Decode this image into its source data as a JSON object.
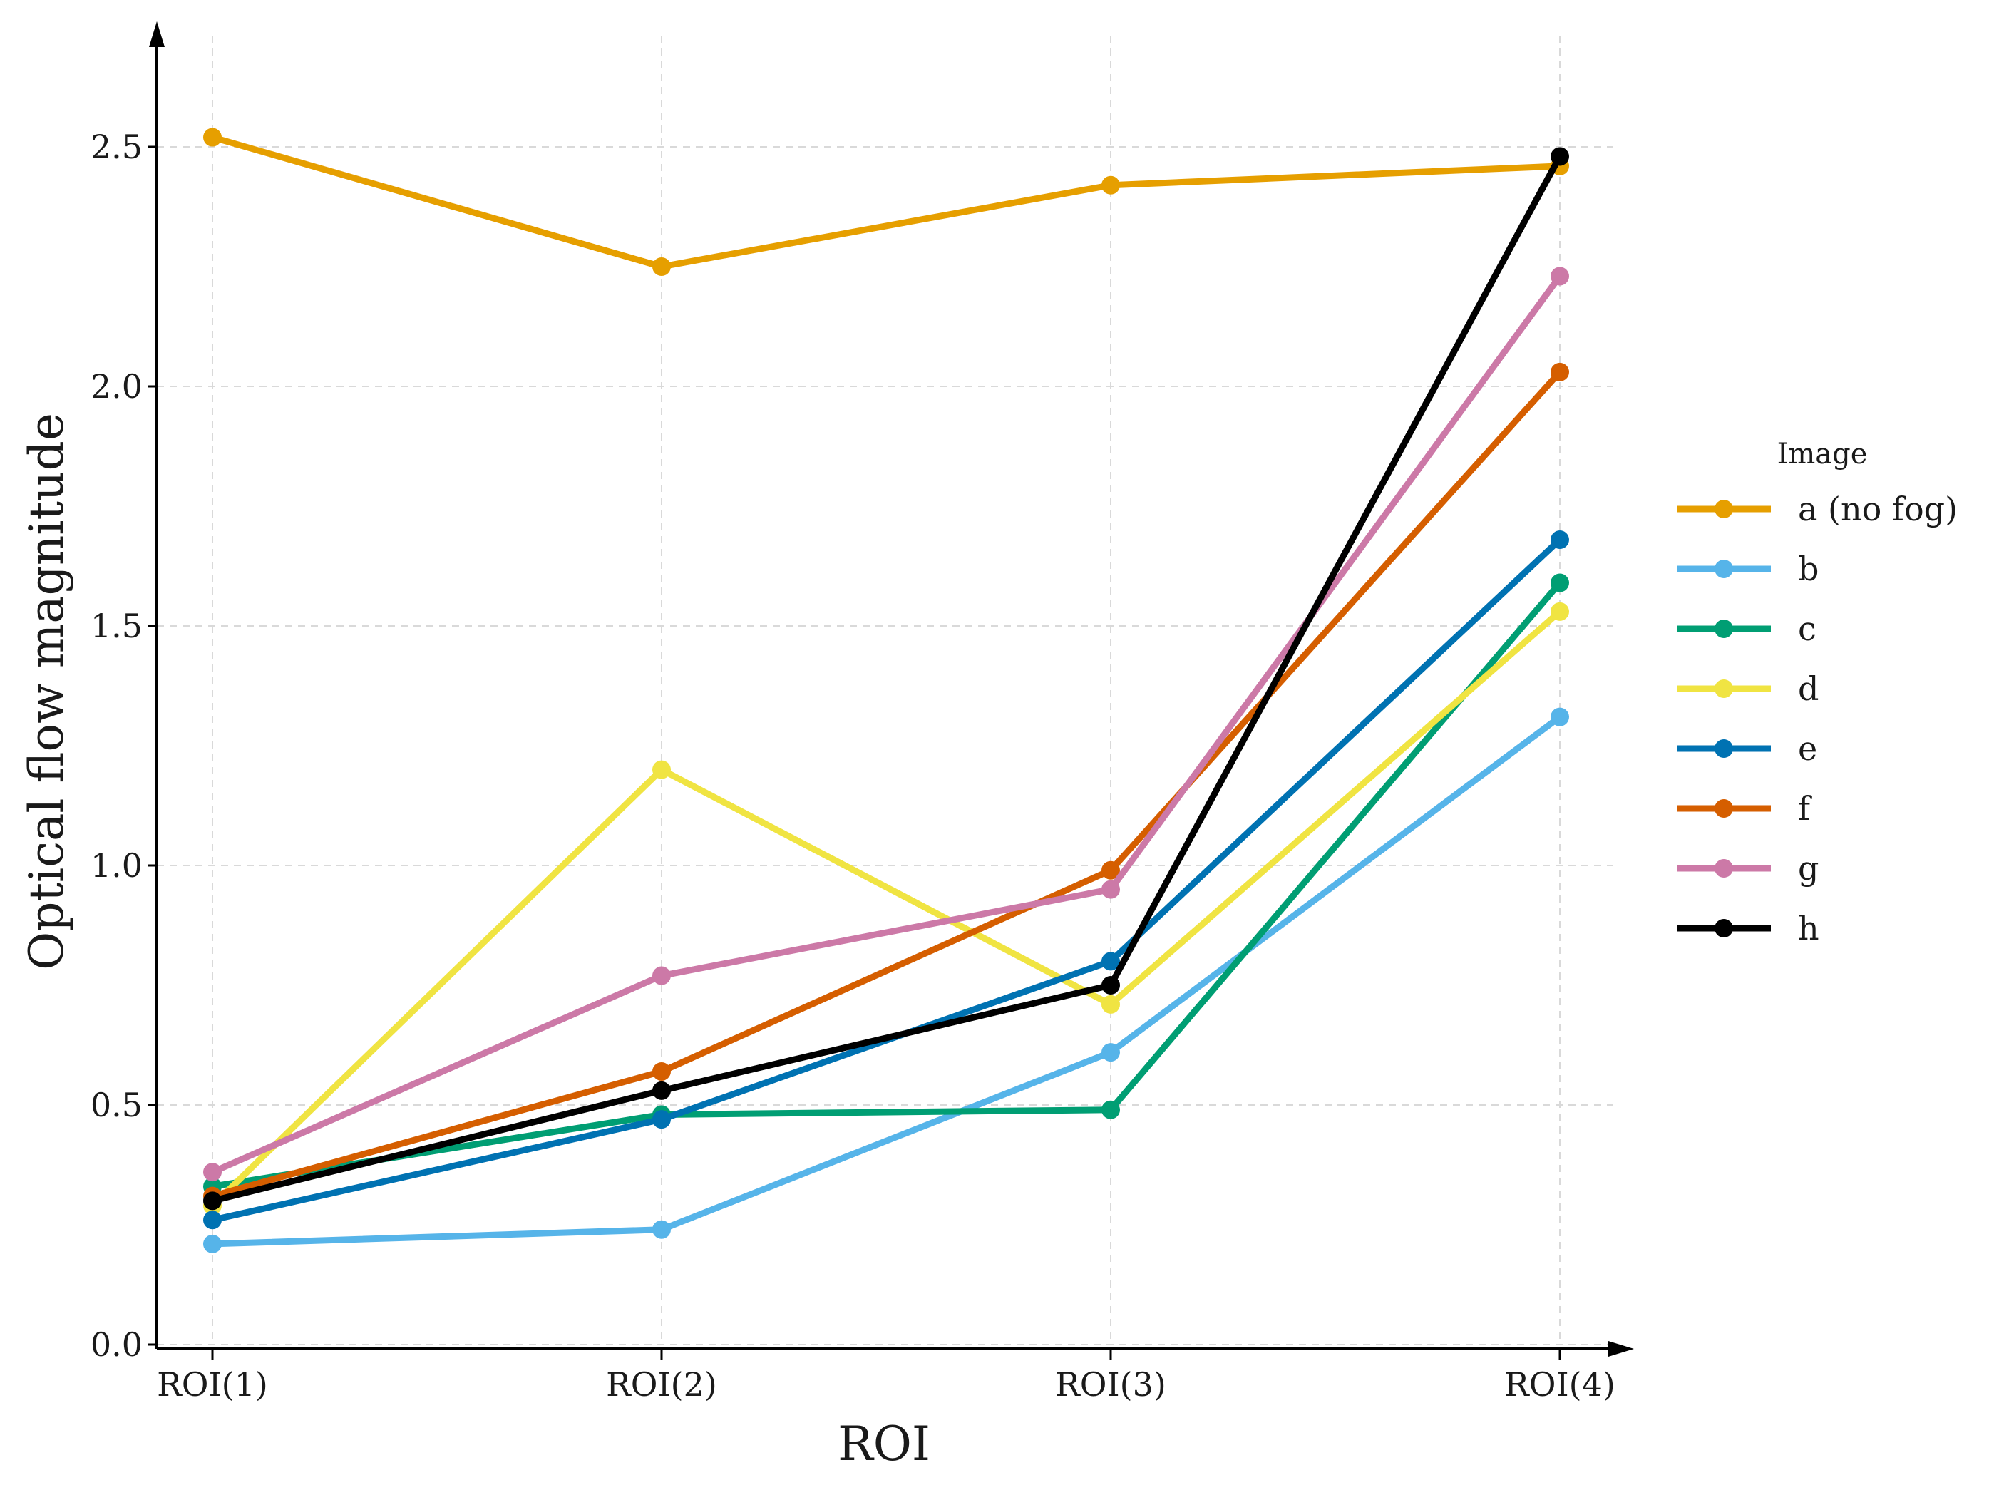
{
  "chart_data": {
    "type": "line",
    "title": "",
    "xlabel": "ROI",
    "ylabel": "Optical flow magnitude",
    "categories": [
      "ROI(1)",
      "ROI(2)",
      "ROI(3)",
      "ROI(4)"
    ],
    "yticks": [
      0.0,
      0.5,
      1.0,
      1.5,
      2.0,
      2.5
    ],
    "ytick_labels": [
      "0.0",
      "0.5",
      "1.0",
      "1.5",
      "2.0",
      "2.5"
    ],
    "ylim": [
      0,
      2.75
    ],
    "grid": true,
    "legend": {
      "title": "Image",
      "placement": "right"
    },
    "series": [
      {
        "name": "a (no fog)",
        "color": "#E69F00",
        "values": [
          2.52,
          2.25,
          2.42,
          2.46
        ]
      },
      {
        "name": "b",
        "color": "#56B4E9",
        "values": [
          0.21,
          0.24,
          0.61,
          1.31
        ]
      },
      {
        "name": "c",
        "color": "#009E73",
        "values": [
          0.33,
          0.48,
          0.49,
          1.59
        ]
      },
      {
        "name": "d",
        "color": "#F0E442",
        "values": [
          0.29,
          1.2,
          0.71,
          1.53
        ]
      },
      {
        "name": "e",
        "color": "#0072B2",
        "values": [
          0.26,
          0.47,
          0.8,
          1.68
        ]
      },
      {
        "name": "f",
        "color": "#D55E00",
        "values": [
          0.31,
          0.57,
          0.99,
          2.03
        ]
      },
      {
        "name": "g",
        "color": "#CC79A7",
        "values": [
          0.36,
          0.77,
          0.95,
          2.23
        ]
      },
      {
        "name": "h",
        "color": "#000000",
        "values": [
          0.3,
          0.53,
          0.75,
          2.48
        ]
      }
    ]
  }
}
